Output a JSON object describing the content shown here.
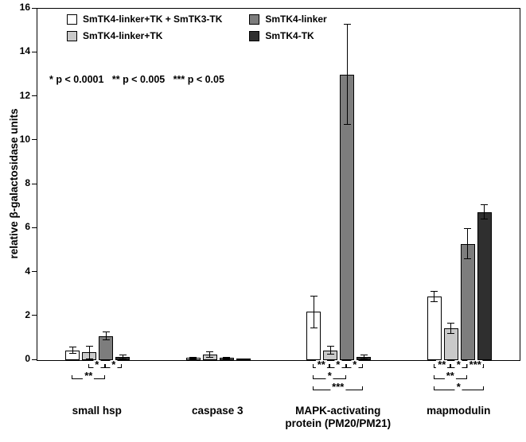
{
  "figure": {
    "background": "#ffffff"
  },
  "chart_data": {
    "type": "bar",
    "title": "",
    "ylabel": "relative β-galactosidase units",
    "ylim": [
      0,
      16
    ],
    "yticks": [
      0,
      2,
      4,
      6,
      8,
      10,
      12,
      14,
      16
    ],
    "grid": false,
    "legend_position": "top-left-inside",
    "pvalue_note": "* p < 0.0001   ** p < 0.005   *** p < 0.05",
    "categories": [
      "small hsp",
      "caspase 3",
      "MAPK-activating\nprotein (PM20/PM21)",
      "mapmodulin"
    ],
    "series": [
      {
        "name": "SmTK4-linker+TK + SmTK3-TK",
        "color": "#ffffff",
        "values": [
          0.45,
          0.1,
          2.2,
          2.9
        ],
        "errors": [
          0.15,
          0.05,
          0.75,
          0.25
        ]
      },
      {
        "name": "SmTK4-linker+TK",
        "color": "#c9c9c9",
        "values": [
          0.35,
          0.25,
          0.45,
          1.45
        ],
        "errors": [
          0.3,
          0.15,
          0.2,
          0.25
        ]
      },
      {
        "name": "SmTK4-linker",
        "color": "#7d7d7d",
        "values": [
          1.1,
          0.1,
          13.0,
          5.3
        ],
        "errors": [
          0.2,
          0.05,
          2.3,
          0.7
        ]
      },
      {
        "name": "SmTK4-TK",
        "color": "#2f2f2f",
        "values": [
          0.15,
          0.05,
          0.15,
          6.75
        ],
        "errors": [
          0.1,
          0.03,
          0.1,
          0.35
        ]
      }
    ],
    "significance": [
      {
        "group": 0,
        "from": 1,
        "to": 2,
        "level": 1,
        "label": "*"
      },
      {
        "group": 0,
        "from": 2,
        "to": 3,
        "level": 1,
        "label": "*"
      },
      {
        "group": 0,
        "from": 0,
        "to": 2,
        "level": 2,
        "label": "**"
      },
      {
        "group": 2,
        "from": 0,
        "to": 1,
        "level": 1,
        "label": "**"
      },
      {
        "group": 2,
        "from": 1,
        "to": 2,
        "level": 1,
        "label": "*"
      },
      {
        "group": 2,
        "from": 2,
        "to": 3,
        "level": 1,
        "label": "*"
      },
      {
        "group": 2,
        "from": 0,
        "to": 2,
        "level": 2,
        "label": "*"
      },
      {
        "group": 2,
        "from": 0,
        "to": 3,
        "level": 3,
        "label": "***"
      },
      {
        "group": 3,
        "from": 0,
        "to": 1,
        "level": 1,
        "label": "**"
      },
      {
        "group": 3,
        "from": 1,
        "to": 2,
        "level": 1,
        "label": "*"
      },
      {
        "group": 3,
        "from": 2,
        "to": 3,
        "level": 1,
        "label": "***"
      },
      {
        "group": 3,
        "from": 0,
        "to": 2,
        "level": 2,
        "label": "**"
      },
      {
        "group": 3,
        "from": 0,
        "to": 3,
        "level": 3,
        "label": "*"
      }
    ]
  }
}
